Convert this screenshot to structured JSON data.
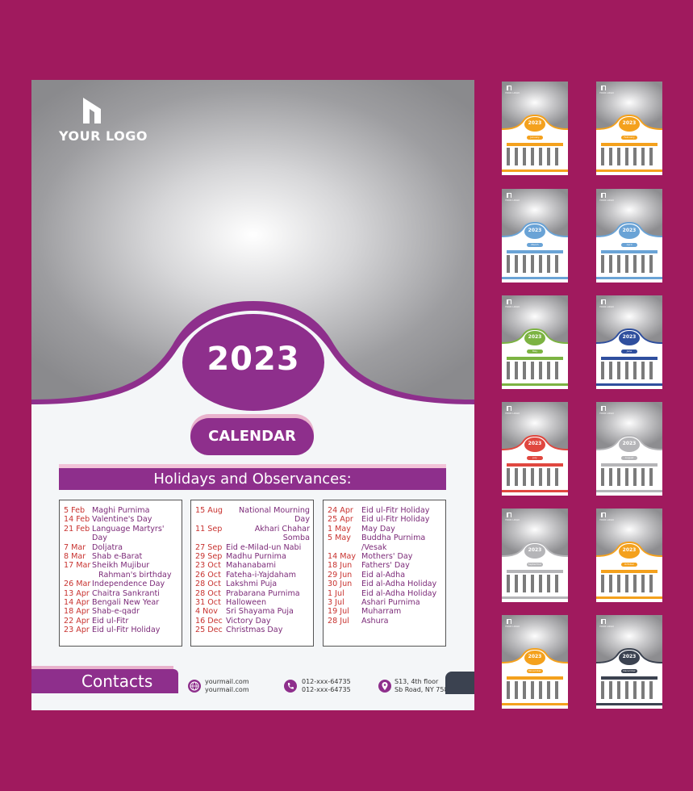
{
  "logo_text": "YOUR LOGO",
  "year": "2023",
  "calendar_label": "CALENDAR",
  "holidays_title": "Holidays and Observances:",
  "holidays": {
    "col1": [
      {
        "date": "5 Feb",
        "name": "Maghi Purnima"
      },
      {
        "date": "14 Feb",
        "name": "Valentine's Day"
      },
      {
        "date": "21 Feb",
        "name": "Language Martyrs' Day"
      },
      {
        "date": "7 Mar",
        "name": "Doljatra"
      },
      {
        "date": "8 Mar",
        "name": "Shab e-Barat"
      },
      {
        "date": "17 Mar",
        "name": "Sheikh Mujibur"
      },
      {
        "date": "",
        "name": "Rahman's birthday"
      },
      {
        "date": "26 Mar",
        "name": "Independence Day"
      },
      {
        "date": "13 Apr",
        "name": "Chaitra Sankranti"
      },
      {
        "date": "14 Apr",
        "name": "Bengali New Year"
      },
      {
        "date": "18 Apr",
        "name": "Shab-e-qadr"
      },
      {
        "date": "22 Apr",
        "name": "Eid ul-Fitr"
      },
      {
        "date": "23 Apr",
        "name": "Eid ul-Fitr Holiday"
      }
    ],
    "col2": [
      {
        "date": "15 Aug",
        "name": "National Mourning Day"
      },
      {
        "date": "11 Sep",
        "name": "Akhari Chahar Somba"
      },
      {
        "date": "27 Sep",
        "name": "Eid e-Milad-un Nabi"
      },
      {
        "date": "29 Sep",
        "name": "Madhu Purnima"
      },
      {
        "date": "23 Oct",
        "name": "Mahanabami"
      },
      {
        "date": "26 Oct",
        "name": "Fateha-i-Yajdaham"
      },
      {
        "date": "28 Oct",
        "name": "Lakshmi Puja"
      },
      {
        "date": "28 Oct",
        "name": "Prabarana Purnima"
      },
      {
        "date": "31 Oct",
        "name": "Halloween"
      },
      {
        "date": "4 Nov",
        "name": "Sri Shayama Puja"
      },
      {
        "date": "16 Dec",
        "name": "Victory Day"
      },
      {
        "date": "25 Dec",
        "name": "Christmas Day"
      }
    ],
    "col3": [
      {
        "date": "24 Apr",
        "name": "Eid ul-Fitr Holiday"
      },
      {
        "date": "25 Apr",
        "name": "Eid ul-Fitr Holiday"
      },
      {
        "date": "1 May",
        "name": "May Day"
      },
      {
        "date": "5 May",
        "name": "Buddha Purnima /Vesak"
      },
      {
        "date": "14 May",
        "name": "Mothers' Day"
      },
      {
        "date": "18 Jun",
        "name": "Fathers' Day"
      },
      {
        "date": "29 Jun",
        "name": "Eid al-Adha"
      },
      {
        "date": "30 Jun",
        "name": "Eid al-Adha Holiday"
      },
      {
        "date": "1 Jul",
        "name": "Eid al-Adha Holiday"
      },
      {
        "date": "3 Jul",
        "name": "Ashari Purnima"
      },
      {
        "date": "19 Jul",
        "name": "Muharram"
      },
      {
        "date": "28 Jul",
        "name": "Ashura"
      }
    ]
  },
  "contacts": {
    "label": "Contacts",
    "email1": "yourmail.com",
    "email2": "yourmail.com",
    "phone1": "012-xxx-64735",
    "phone2": "012-xxx-64735",
    "address1": "S13, 4th floor",
    "address2": "Sb Road, NY 7584"
  },
  "thumbnails": [
    {
      "year": "2023",
      "month": "January",
      "color": "#f4a11d"
    },
    {
      "year": "2023",
      "month": "February",
      "color": "#f4a11d"
    },
    {
      "year": "2023",
      "month": "March",
      "color": "#6aa3d6"
    },
    {
      "year": "2023",
      "month": "April",
      "color": "#6aa3d6"
    },
    {
      "year": "2023",
      "month": "May",
      "color": "#7cb342"
    },
    {
      "year": "2023",
      "month": "June",
      "color": "#2f4f9e"
    },
    {
      "year": "2023",
      "month": "July",
      "color": "#e0473f"
    },
    {
      "year": "2023",
      "month": "August",
      "color": "#b5b5b8"
    },
    {
      "year": "2023",
      "month": "September",
      "color": "#b5b5b8"
    },
    {
      "year": "2023",
      "month": "October",
      "color": "#f4a11d"
    },
    {
      "year": "2023",
      "month": "November",
      "color": "#f4a11d"
    },
    {
      "year": "2023",
      "month": "December",
      "color": "#3b4250"
    }
  ],
  "colors": {
    "background": "#a01a5e",
    "accent": "#8e2f8c",
    "date_red": "#c8322f"
  }
}
